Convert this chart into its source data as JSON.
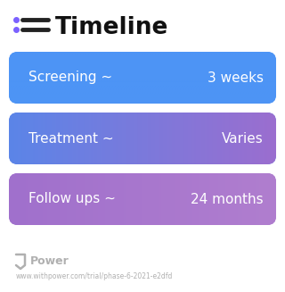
{
  "title": "Timeline",
  "title_icon_color": "#7b61ff",
  "background_color": "#ffffff",
  "rows": [
    {
      "label": "Screening ~",
      "value": "3 weeks",
      "color_left": "#4d94f5",
      "color_right": "#4d94f5"
    },
    {
      "label": "Treatment ~",
      "value": "Varies",
      "color_left": "#5b85e8",
      "color_right": "#9b6ecf"
    },
    {
      "label": "Follow ups ~",
      "value": "24 months",
      "color_left": "#a070cc",
      "color_right": "#b07ecf"
    }
  ],
  "footer_text": "Power",
  "footer_url": "www.withpower.com/trial/phase-6-2021-e2dfd",
  "footer_color": "#b0b0b0"
}
